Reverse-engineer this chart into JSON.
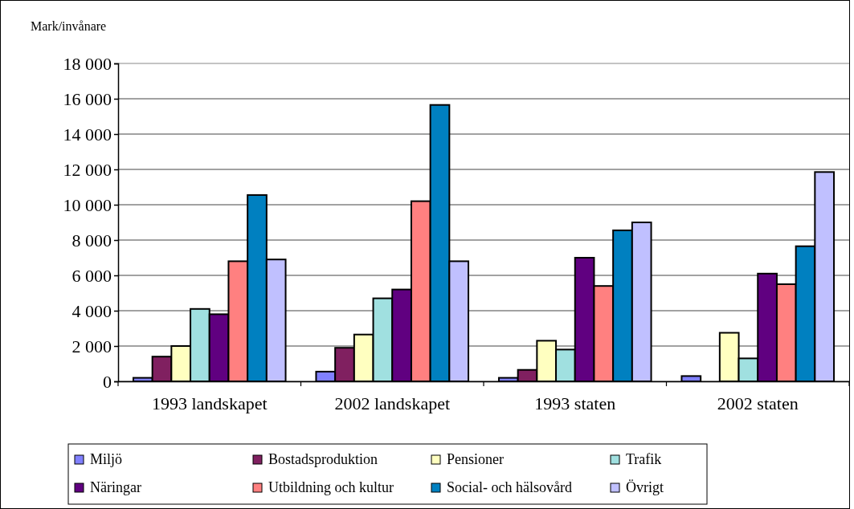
{
  "chart_data": {
    "type": "bar",
    "ylabel": "Mark/invånare",
    "categories": [
      "1993 landskapet",
      "2002 landskapet",
      "1993 staten",
      "2002 staten"
    ],
    "series": [
      {
        "name": "Miljö",
        "color": "#8080ff",
        "values": [
          200,
          550,
          200,
          300
        ]
      },
      {
        "name": "Bostadsproduktion",
        "color": "#802060",
        "values": [
          1400,
          1900,
          650,
          null
        ]
      },
      {
        "name": "Pensioner",
        "color": "#ffffc0",
        "values": [
          2000,
          2650,
          2300,
          2750
        ]
      },
      {
        "name": "Trafik",
        "color": "#a0e0e0",
        "values": [
          4100,
          4700,
          1800,
          1300
        ]
      },
      {
        "name": "Näringar",
        "color": "#600080",
        "values": [
          3800,
          5200,
          7000,
          6100
        ]
      },
      {
        "name": "Utbildning och kultur",
        "color": "#ff8080",
        "values": [
          6800,
          10200,
          5400,
          5500
        ]
      },
      {
        "name": "Social- och hälsovård",
        "color": "#0080c0",
        "values": [
          10550,
          15650,
          8550,
          7650
        ]
      },
      {
        "name": "Övrigt",
        "color": "#c0c0ff",
        "values": [
          6900,
          6800,
          9000,
          11850
        ]
      }
    ],
    "ylim": [
      0,
      18000
    ],
    "yticks": [
      {
        "value": 0,
        "label": "0"
      },
      {
        "value": 2000,
        "label": "2 000"
      },
      {
        "value": 4000,
        "label": "4 000"
      },
      {
        "value": 6000,
        "label": "6 000"
      },
      {
        "value": 8000,
        "label": "8 000"
      },
      {
        "value": 10000,
        "label": "10 000"
      },
      {
        "value": 12000,
        "label": "12 000"
      },
      {
        "value": 14000,
        "label": "14 000"
      },
      {
        "value": 16000,
        "label": "16 000"
      },
      {
        "value": 18000,
        "label": "18 000"
      }
    ],
    "grid": "y",
    "legend": "bottom"
  }
}
